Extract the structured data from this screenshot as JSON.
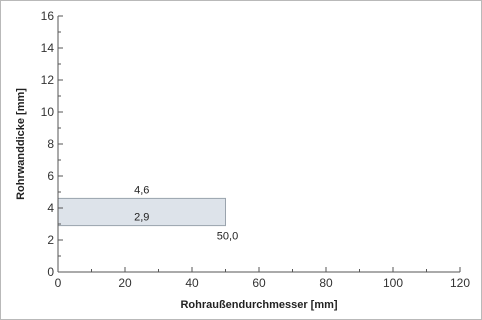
{
  "chart_data": {
    "type": "area",
    "title": "",
    "xlabel": "Rohraußendurchmesser [mm]",
    "ylabel": "Rohrwanddicke [mm]",
    "xlim": [
      0,
      120
    ],
    "ylim": [
      0,
      16
    ],
    "x_ticks": [
      0,
      20,
      40,
      60,
      80,
      100,
      120
    ],
    "x_tick_labels": [
      "0",
      "20",
      "40",
      "60",
      "80",
      "100",
      "120"
    ],
    "y_ticks": [
      0,
      2,
      4,
      6,
      8,
      10,
      12,
      14,
      16
    ],
    "y_tick_labels": [
      "0",
      "2",
      "4",
      "6",
      "8",
      "10",
      "12",
      "14",
      "16"
    ],
    "grid": false,
    "legend": "none",
    "region": {
      "x_min": 0,
      "x_max": 50.0,
      "y_min": 2.9,
      "y_max": 4.6,
      "fill": "#dde3ea",
      "stroke": "#9aa3ad"
    },
    "annotations": [
      {
        "text": "4,6",
        "x": 25,
        "y": 4.6,
        "anchor": "above"
      },
      {
        "text": "2,9",
        "x": 25,
        "y": 2.9,
        "anchor": "above"
      },
      {
        "text": "50,0",
        "x": 50,
        "y": 2.9,
        "anchor": "below-right"
      }
    ]
  }
}
